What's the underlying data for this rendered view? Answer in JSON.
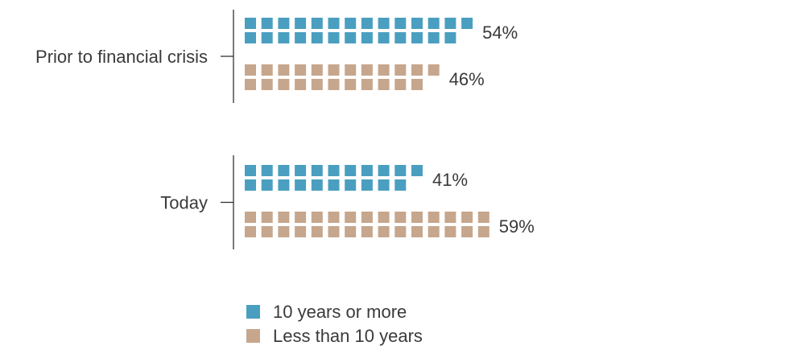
{
  "chart_data": {
    "type": "bar",
    "categories": [
      "Prior to financial crisis",
      "Today"
    ],
    "series": [
      {
        "name": "10 years or more",
        "values": [
          54,
          41
        ],
        "labels": [
          "54%",
          "41%"
        ],
        "color": "#4a9fc0"
      },
      {
        "name": "Less than 10 years",
        "values": [
          46,
          59
        ],
        "labels": [
          "46%",
          "59%"
        ],
        "color": "#c6a68c"
      }
    ],
    "unit": "%",
    "legend_position": "bottom-center",
    "grid": false
  }
}
